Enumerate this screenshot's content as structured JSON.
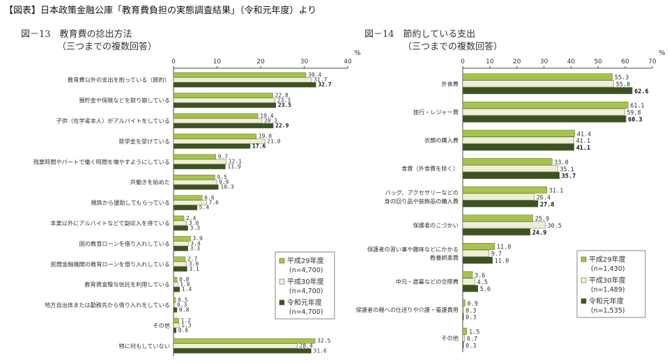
{
  "header": {
    "text": "【図表】日本政策金融公庫「教育費負担の実態調査結果」（令和元年度）より"
  },
  "colors": {
    "series1": "#a8c34a",
    "series2": "#eeeed6",
    "series3": "#3d5223",
    "axis": "#444444"
  },
  "chart_data": [
    {
      "type": "bar",
      "title": "図－13　教育費の捻出方法",
      "subtitle": "（三つまでの複数回答）",
      "unit": "%",
      "xlim": [
        0,
        40
      ],
      "ticks": [
        0,
        10,
        20,
        30,
        40
      ],
      "categories": [
        "教育費以外の支出を削っている（節約）",
        "預貯金や保険などを取り崩している",
        "子供（在学者本人）がアルバイトをしている",
        "奨学金を受けている",
        "残業時間やパートで働く時間を増やすようにしている",
        "共働きを始めた",
        "親族から援助してもらっている",
        "本業以外にアルバイトなどで副収入を得ている",
        "国の教育ローンを借り入れしている",
        "民間金融機関の教育ローンを借り入れしている",
        "教育資金贈与信託を利用している",
        "地方自治体または勤務先から借り入れをしている",
        "その他",
        "特に何もしていない"
      ],
      "series": [
        {
          "name": "平成29年度",
          "n": "(n=4,700)",
          "values": [
            30.4,
            22.8,
            19.4,
            19.0,
            9.7,
            9.5,
            6.6,
            2.4,
            3.9,
            2.7,
            0.8,
            0.5,
            1.2,
            32.5
          ]
        },
        {
          "name": "平成30年度",
          "n": "(n=4,700)",
          "values": [
            31.7,
            23.3,
            20.3,
            21.0,
            12.1,
            9.9,
            7.6,
            3.0,
            3.4,
            3.0,
            1.0,
            0.3,
            1.3,
            28.4
          ]
        },
        {
          "name": "令和元年度",
          "n": "(n=4,700)",
          "values": [
            32.7,
            23.5,
            22.9,
            17.6,
            11.9,
            10.3,
            5.4,
            3.3,
            3.3,
            3.1,
            1.4,
            0.8,
            0.6,
            31.6
          ]
        }
      ],
      "value_labels": [
        [
          "30.4",
          "31.7",
          "32.7"
        ],
        [
          "22.8",
          "23.3",
          "23.5"
        ],
        [
          "19.4",
          "20.3",
          "22.9"
        ],
        [
          "19.0",
          "21.0",
          "17.6"
        ],
        [
          "9.7",
          "12.1",
          "11.9"
        ],
        [
          "9.5",
          "9.9",
          "10.3"
        ],
        [
          "6.6",
          "7.6",
          "5.4"
        ],
        [
          "2.4",
          "3.0",
          "3.3"
        ],
        [
          "3.9",
          "3.4",
          "3.3"
        ],
        [
          "2.7",
          "3.0",
          "3.1"
        ],
        [
          "0.8",
          "1.0",
          "1.4"
        ],
        [
          "0.5",
          "0.3",
          "0.8"
        ],
        [
          "1.2",
          "1.3",
          "0.6"
        ],
        [
          "32.5",
          "28.4",
          "31.6"
        ]
      ],
      "highlight": [
        true,
        true,
        true,
        true,
        false,
        false,
        false,
        false,
        false,
        false,
        false,
        false,
        false,
        false
      ]
    },
    {
      "type": "bar",
      "title": "図－14　節約している支出",
      "subtitle": "（三つまでの複数回答）",
      "unit": "%",
      "xlim": [
        0,
        70
      ],
      "ticks": [
        0,
        10,
        20,
        30,
        40,
        50,
        60,
        70
      ],
      "categories": [
        "外食費",
        "旅行・レジャー費",
        "衣類の購入費",
        "食費（外食費を除く）",
        "バッグ、アクセサリーなどの|身の回り品や装飾品の購入費",
        "保護者のこづかい",
        "保護者の習い事や趣味などにかかる|教養娯楽費",
        "中元・歳暮などの交際費",
        "保護者の親への仕送りや介護・看護費用",
        "その他"
      ],
      "series": [
        {
          "name": "平成29年度",
          "n": "(n=1,430)",
          "values": [
            55.3,
            61.1,
            41.4,
            33.0,
            31.1,
            25.9,
            11.8,
            3.6,
            0.9,
            1.5
          ]
        },
        {
          "name": "平成30年度",
          "n": "(n=1,489)",
          "values": [
            55.8,
            59.8,
            41.1,
            35.1,
            26.4,
            30.5,
            9.7,
            4.5,
            0.3,
            0.7
          ]
        },
        {
          "name": "令和元年度",
          "n": "(n=1,535)",
          "values": [
            62.6,
            60.3,
            41.1,
            35.7,
            27.8,
            24.9,
            11.0,
            5.6,
            0.3,
            0.3
          ]
        }
      ],
      "value_labels": [
        [
          "55.3",
          "55.8",
          "62.6"
        ],
        [
          "61.1",
          "59.8",
          "60.3"
        ],
        [
          "41.4",
          "41.1",
          "41.1"
        ],
        [
          "33.0",
          "35.1",
          "35.7"
        ],
        [
          "31.1",
          "26.4",
          "27.8"
        ],
        [
          "25.9",
          "30.5",
          "24.9"
        ],
        [
          "11.8",
          "9.7",
          "11.0"
        ],
        [
          "3.6",
          "4.5",
          "5.6"
        ],
        [
          "0.9",
          "0.3",
          "0.3"
        ],
        [
          "1.5",
          "0.7",
          "0.3"
        ]
      ],
      "highlight": [
        true,
        true,
        true,
        true,
        true,
        true,
        false,
        false,
        false,
        false
      ]
    }
  ]
}
